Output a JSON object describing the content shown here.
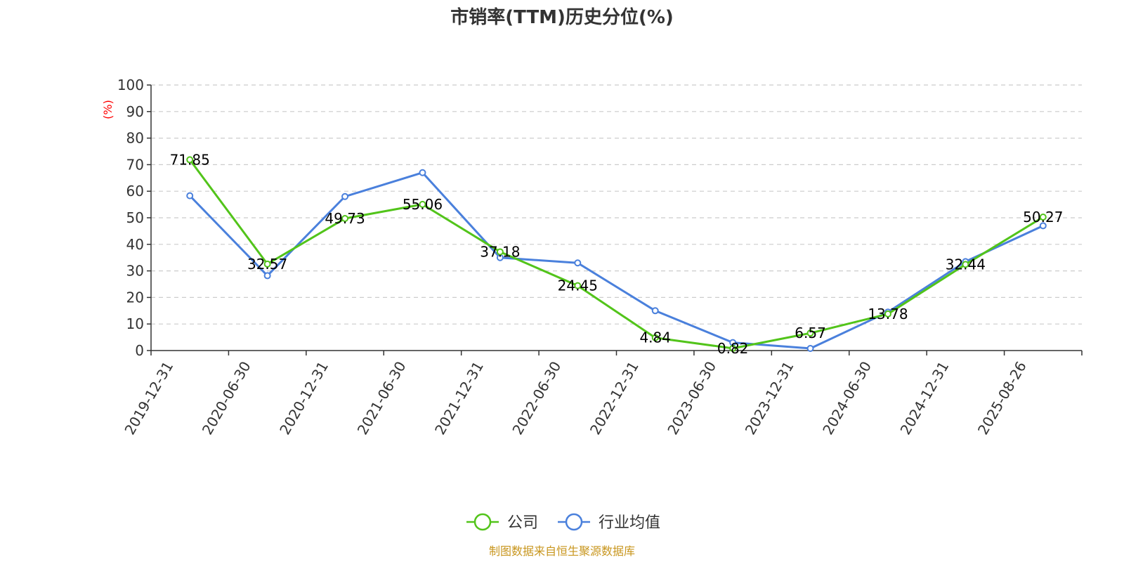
{
  "title": "市销率(TTM)历史分位(%)",
  "source": "制图数据来自恒生聚源数据库",
  "colors": {
    "company": "#52c41a",
    "industry": "#4a80dc",
    "unit": "#ff0000",
    "source": "#c8961e",
    "axis": "#333333",
    "grid": "#cccccc"
  },
  "chart_data": {
    "type": "line",
    "title": "市销率(TTM)历史分位(%)",
    "ylabel": "(%)",
    "ylim": [
      0,
      100
    ],
    "yticks": [
      0,
      10,
      20,
      30,
      40,
      50,
      60,
      70,
      80,
      90,
      100
    ],
    "grid": true,
    "legend_position": "bottom",
    "categories": [
      "2019-12-31",
      "2020-06-30",
      "2020-12-31",
      "2021-06-30",
      "2021-12-31",
      "2022-06-30",
      "2022-12-31",
      "2023-06-30",
      "2023-12-31",
      "2024-06-30",
      "2024-12-31",
      "2025-08-26"
    ],
    "series": [
      {
        "name": "公司",
        "color": "#52c41a",
        "values": [
          71.85,
          32.57,
          49.73,
          55.06,
          37.18,
          24.45,
          4.84,
          0.82,
          6.57,
          13.78,
          32.44,
          50.27
        ],
        "labels": [
          "71.85",
          "32.57",
          "49.73",
          "55.06",
          "37.18",
          "24.45",
          "4.84",
          "0.82",
          "6.57",
          "13.78",
          "32.44",
          "50.27"
        ]
      },
      {
        "name": "行业均值",
        "color": "#4a80dc",
        "values": [
          58.3,
          28.2,
          58.0,
          67.0,
          35.0,
          33.0,
          15.0,
          3.0,
          0.8,
          14.5,
          33.5,
          47.0
        ]
      }
    ]
  }
}
